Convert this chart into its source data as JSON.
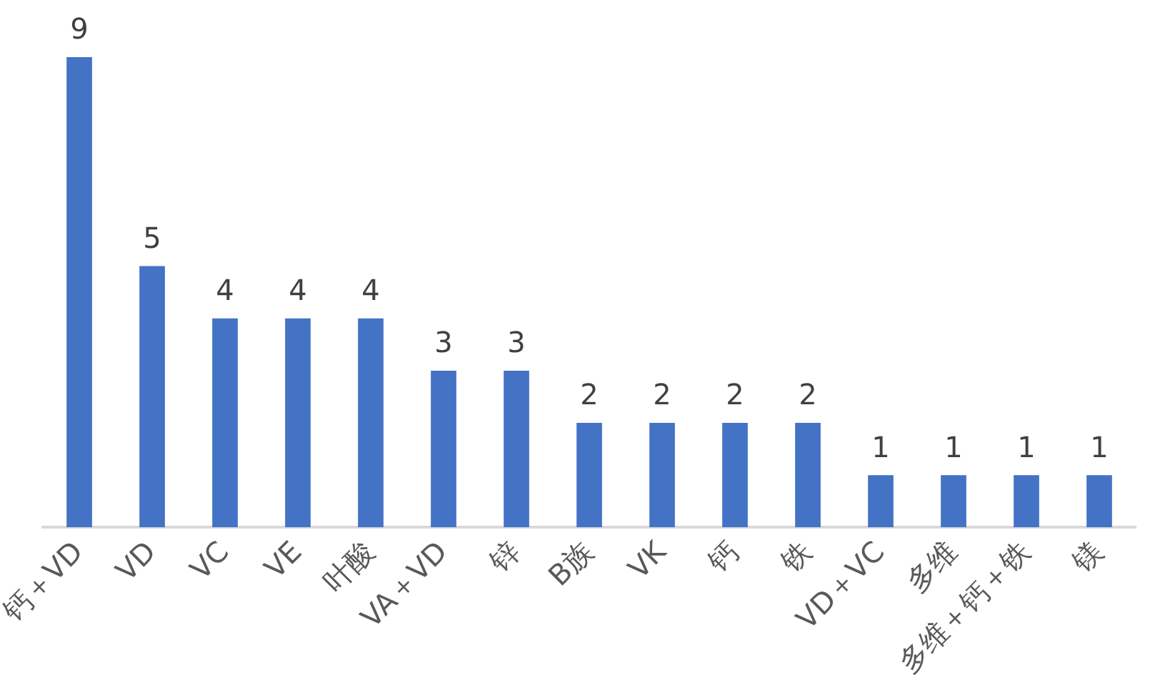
{
  "chart_data": {
    "type": "bar",
    "categories": [
      "钙＋VD",
      "VD",
      "VC",
      "VE",
      "叶酸",
      "VA＋VD",
      "锌",
      "B族",
      "VK",
      "钙",
      "铁",
      "VD＋VC",
      "多维",
      "多维＋钙＋铁",
      "镁"
    ],
    "values": [
      9,
      5,
      4,
      4,
      4,
      3,
      3,
      2,
      2,
      2,
      2,
      1,
      1,
      1,
      1
    ],
    "color": "#4472c4",
    "data_labels": true,
    "grid": false,
    "legend": false
  }
}
